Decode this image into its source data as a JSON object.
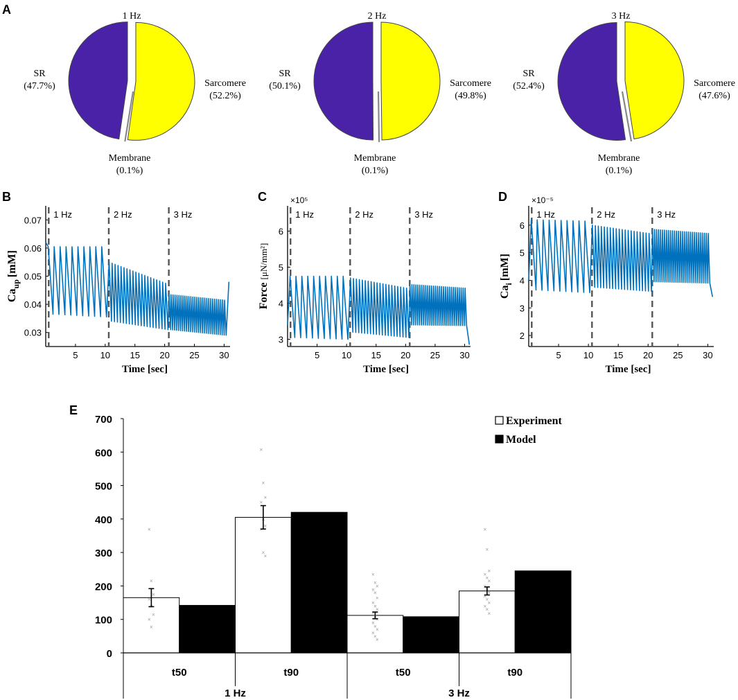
{
  "panels": {
    "a": "A",
    "b": "B",
    "c": "C",
    "d": "D",
    "e": "E"
  },
  "colors": {
    "sr": "#4a22a8",
    "sarcomere": "#ffff00",
    "membrane": "#ffffff",
    "trace": "#0072bd",
    "experiment": "#ffffff",
    "model": "#000000",
    "dashed": "#555555"
  },
  "chart_data": [
    {
      "type": "pie",
      "title": "1 Hz",
      "slices": [
        {
          "name": "Sarcomere",
          "pct_label": "(52.2%)",
          "value": 52.2
        },
        {
          "name": "Membrane",
          "pct_label": "(0.1%)",
          "value": 0.1
        },
        {
          "name": "SR",
          "pct_label": "(47.7%)",
          "value": 47.7
        }
      ]
    },
    {
      "type": "pie",
      "title": "2 Hz",
      "slices": [
        {
          "name": "Sarcomere",
          "pct_label": "(49.8%)",
          "value": 49.8
        },
        {
          "name": "Membrane",
          "pct_label": "(0.1%)",
          "value": 0.1
        },
        {
          "name": "SR",
          "pct_label": "(50.1%)",
          "value": 50.1
        }
      ]
    },
    {
      "type": "pie",
      "title": "3 Hz",
      "slices": [
        {
          "name": "Sarcomere",
          "pct_label": "(47.6%)",
          "value": 47.6
        },
        {
          "name": "Membrane",
          "pct_label": "(0.1%)",
          "value": 0.1
        },
        {
          "name": "SR",
          "pct_label": "(52.4%)",
          "value": 52.4
        }
      ]
    },
    {
      "type": "line",
      "ylabel_main": "Ca",
      "ylabel_sub": "up",
      "ylabel_unit": "[mM]",
      "xlabel": "Time [sec]",
      "exponent": "",
      "xlim": [
        0,
        31
      ],
      "ylim": [
        0.025,
        0.075
      ],
      "xticks": [
        5,
        10,
        15,
        20,
        25,
        30
      ],
      "yticks": [
        0.03,
        0.04,
        0.05,
        0.06,
        0.07
      ],
      "ytick_labels": [
        "0.03",
        "0.04",
        "0.05",
        "0.06",
        "0.07"
      ],
      "markers": [
        {
          "t": 0.5,
          "label": "1 Hz"
        },
        {
          "t": 10.6,
          "label": "2 Hz"
        },
        {
          "t": 20.7,
          "label": "3 Hz"
        }
      ],
      "segments": [
        {
          "start": 0.3,
          "end": 10.6,
          "freq": 1,
          "peak_start": 0.0605,
          "peak_end": 0.0605,
          "trough_start": 0.0365,
          "trough_end": 0.0355
        },
        {
          "start": 10.6,
          "end": 20.7,
          "freq": 2,
          "peak_start": 0.055,
          "peak_end": 0.0475,
          "trough_start": 0.034,
          "trough_end": 0.031
        },
        {
          "start": 20.7,
          "end": 30.2,
          "freq": 3,
          "peak_start": 0.0435,
          "peak_end": 0.0415,
          "trough_start": 0.031,
          "trough_end": 0.029
        }
      ],
      "start_value": 0.062,
      "end_value": 0.048
    },
    {
      "type": "line",
      "ylabel_main": "Force",
      "ylabel_sub": "",
      "ylabel_unit": "[μN/mm²]",
      "xlabel": "Time [sec]",
      "exponent": "×10⁵",
      "xlim": [
        0,
        31
      ],
      "ylim": [
        2.8,
        6.7
      ],
      "xticks": [
        5,
        10,
        15,
        20,
        25,
        30
      ],
      "yticks": [
        3,
        4,
        5,
        6
      ],
      "ytick_labels": [
        "3",
        "4",
        "5",
        "6"
      ],
      "markers": [
        {
          "t": 0.5,
          "label": "1 Hz"
        },
        {
          "t": 10.6,
          "label": "2 Hz"
        },
        {
          "t": 20.7,
          "label": "3 Hz"
        }
      ],
      "segments": [
        {
          "start": 0.3,
          "end": 10.6,
          "freq": 1,
          "peak_start": 4.75,
          "peak_end": 4.75,
          "trough_start": 3.05,
          "trough_end": 3.0
        },
        {
          "start": 10.6,
          "end": 20.7,
          "freq": 2,
          "peak_start": 4.7,
          "peak_end": 4.42,
          "trough_start": 3.2,
          "trough_end": 3.05
        },
        {
          "start": 20.7,
          "end": 30.2,
          "freq": 3,
          "peak_start": 4.52,
          "peak_end": 4.42,
          "trough_start": 3.4,
          "trough_end": 3.38
        }
      ],
      "start_value": 3.4,
      "end_value": 2.85
    },
    {
      "type": "line",
      "ylabel_main": "Ca",
      "ylabel_sub": "i",
      "ylabel_unit": "[mM]",
      "xlabel": "Time [sec]",
      "exponent": "×10⁻⁵",
      "xlim": [
        0,
        31
      ],
      "ylim": [
        1.6,
        6.7
      ],
      "xticks": [
        5,
        10,
        15,
        20,
        25,
        30
      ],
      "yticks": [
        2,
        3,
        4,
        5,
        6
      ],
      "ytick_labels": [
        "2",
        "3",
        "4",
        "5",
        "6"
      ],
      "markers": [
        {
          "t": 0.5,
          "label": "1 Hz"
        },
        {
          "t": 10.6,
          "label": "2 Hz"
        },
        {
          "t": 20.7,
          "label": "3 Hz"
        }
      ],
      "segments": [
        {
          "start": 0.3,
          "end": 10.6,
          "freq": 1,
          "peak_start": 6.2,
          "peak_end": 6.15,
          "trough_start": 3.65,
          "trough_end": 3.55
        },
        {
          "start": 10.6,
          "end": 20.7,
          "freq": 2,
          "peak_start": 6.0,
          "peak_end": 5.7,
          "trough_start": 3.75,
          "trough_end": 3.6
        },
        {
          "start": 20.7,
          "end": 30.2,
          "freq": 3,
          "peak_start": 5.85,
          "peak_end": 5.7,
          "trough_start": 3.95,
          "trough_end": 3.9
        }
      ],
      "start_value": 4.0,
      "end_value": 3.4
    },
    {
      "type": "bar",
      "ylim": [
        0,
        700
      ],
      "yticks": [
        0,
        100,
        200,
        300,
        400,
        500,
        600,
        700
      ],
      "categories": [
        "t50",
        "t90",
        "t50",
        "t90"
      ],
      "groups": [
        "1 Hz",
        "3 Hz"
      ],
      "series": [
        {
          "name": "Experiment",
          "values": [
            165,
            405,
            112,
            185
          ],
          "errors": [
            27,
            35,
            10,
            12
          ]
        },
        {
          "name": "Model",
          "values": [
            142,
            420,
            108,
            245
          ]
        }
      ],
      "scatter": [
        [
          370,
          215,
          175,
          160,
          140,
          115,
          100,
          78
        ],
        [
          608,
          508,
          465,
          450,
          400,
          380,
          370,
          300,
          290
        ],
        [
          235,
          210,
          200,
          190,
          180,
          165,
          150,
          140,
          130,
          120,
          110,
          100,
          90,
          80,
          70,
          60,
          50,
          40
        ],
        [
          370,
          310,
          245,
          235,
          225,
          215,
          200,
          190,
          180,
          170,
          160,
          150,
          140,
          130,
          118
        ]
      ]
    }
  ]
}
